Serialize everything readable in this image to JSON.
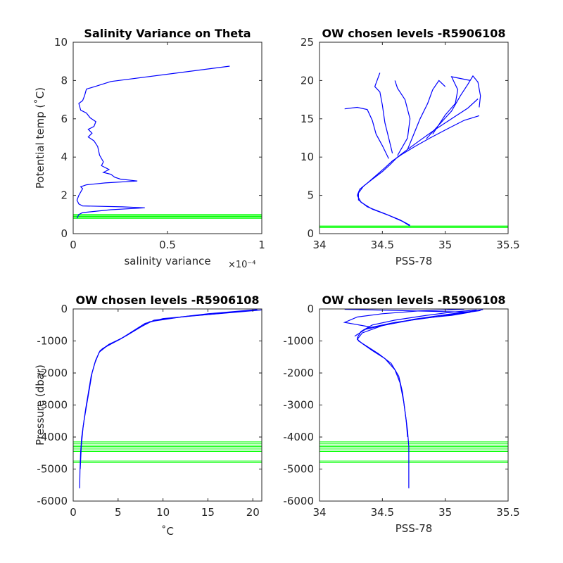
{
  "chart_data": [
    {
      "id": "p1",
      "type": "line",
      "title": "Salinity Variance on Theta",
      "xlabel": "salinity variance",
      "ylabel": "Potential temp (˚C)",
      "x_exponent_label": "×10⁻⁴",
      "xlim": [
        0,
        1
      ],
      "ylim": [
        0,
        10
      ],
      "xticks": [
        0,
        0.5,
        1
      ],
      "xtick_labels": [
        "0",
        "0.5",
        "1"
      ],
      "yticks": [
        0,
        2,
        4,
        6,
        8,
        10
      ],
      "ytick_labels": [
        "0",
        "2",
        "4",
        "6",
        "8",
        "10"
      ],
      "series": [
        {
          "color": "#0000ff",
          "points": [
            [
              0.83,
              8.75
            ],
            [
              0.2,
              7.95
            ],
            [
              0.12,
              7.7
            ],
            [
              0.07,
              7.55
            ],
            [
              0.06,
              7.2
            ],
            [
              0.05,
              6.95
            ],
            [
              0.03,
              6.8
            ],
            [
              0.04,
              6.45
            ],
            [
              0.07,
              6.3
            ],
            [
              0.09,
              6.05
            ],
            [
              0.12,
              5.85
            ],
            [
              0.11,
              5.6
            ],
            [
              0.08,
              5.45
            ],
            [
              0.1,
              5.25
            ],
            [
              0.08,
              5.05
            ],
            [
              0.11,
              4.85
            ],
            [
              0.13,
              4.55
            ],
            [
              0.14,
              4.1
            ],
            [
              0.16,
              3.75
            ],
            [
              0.15,
              3.55
            ],
            [
              0.19,
              3.35
            ],
            [
              0.16,
              3.2
            ],
            [
              0.2,
              3.1
            ],
            [
              0.22,
              2.95
            ],
            [
              0.25,
              2.85
            ],
            [
              0.34,
              2.75
            ],
            [
              0.17,
              2.65
            ],
            [
              0.07,
              2.55
            ],
            [
              0.04,
              2.45
            ],
            [
              0.05,
              2.35
            ],
            [
              0.03,
              2.0
            ],
            [
              0.02,
              1.75
            ],
            [
              0.03,
              1.55
            ],
            [
              0.05,
              1.45
            ],
            [
              0.26,
              1.4
            ],
            [
              0.38,
              1.35
            ],
            [
              0.2,
              1.25
            ],
            [
              0.05,
              1.1
            ],
            [
              0.03,
              1.0
            ],
            [
              0.02,
              0.8
            ]
          ]
        }
      ],
      "hlines": [
        0.8,
        0.85,
        0.9,
        0.95,
        1.0
      ],
      "hline_color": "#00ff00"
    },
    {
      "id": "p2",
      "type": "line",
      "title": "OW chosen levels -R5906108",
      "xlabel": "PSS-78",
      "ylabel": "",
      "xlim": [
        34,
        35.5
      ],
      "ylim": [
        0,
        25
      ],
      "xticks": [
        34,
        34.5,
        35,
        35.5
      ],
      "xtick_labels": [
        "34",
        "34.5",
        "35",
        "35.5"
      ],
      "yticks": [
        0,
        5,
        10,
        15,
        20,
        25
      ],
      "ytick_labels": [
        "0",
        "5",
        "10",
        "15",
        "20",
        "25"
      ],
      "series": [
        {
          "color": "#0000ff",
          "points": [
            [
              34.72,
              1.0
            ],
            [
              34.66,
              1.6
            ],
            [
              34.55,
              2.4
            ],
            [
              34.42,
              3.2
            ],
            [
              34.33,
              4.1
            ],
            [
              34.3,
              5.0
            ],
            [
              34.32,
              5.8
            ],
            [
              34.38,
              6.6
            ],
            [
              34.45,
              7.6
            ],
            [
              34.52,
              8.6
            ],
            [
              34.58,
              9.5
            ],
            [
              34.66,
              10.4
            ],
            [
              34.76,
              11.4
            ],
            [
              34.88,
              12.5
            ],
            [
              35.02,
              13.7
            ],
            [
              35.15,
              14.8
            ],
            [
              35.27,
              15.4
            ]
          ]
        },
        {
          "color": "#0000ff",
          "points": [
            [
              34.72,
              1.1
            ],
            [
              34.64,
              1.8
            ],
            [
              34.52,
              2.6
            ],
            [
              34.38,
              3.5
            ],
            [
              34.31,
              4.4
            ],
            [
              34.31,
              5.3
            ],
            [
              34.35,
              6.2
            ],
            [
              34.42,
              7.1
            ],
            [
              34.5,
              8.1
            ],
            [
              34.56,
              9.0
            ],
            [
              34.62,
              10.0
            ],
            [
              34.7,
              11.0
            ],
            [
              34.8,
              12.2
            ],
            [
              34.92,
              13.6
            ],
            [
              35.05,
              15.0
            ],
            [
              35.18,
              16.4
            ],
            [
              35.26,
              17.6
            ]
          ]
        },
        {
          "color": "#0000ff",
          "points": [
            [
              34.55,
              9.8
            ],
            [
              34.5,
              11.5
            ],
            [
              34.45,
              13.0
            ],
            [
              34.42,
              14.8
            ],
            [
              34.38,
              16.2
            ],
            [
              34.3,
              16.5
            ],
            [
              34.2,
              16.3
            ]
          ]
        },
        {
          "color": "#0000ff",
          "points": [
            [
              34.58,
              10.5
            ],
            [
              34.55,
              12.5
            ],
            [
              34.52,
              14.5
            ],
            [
              34.5,
              16.8
            ],
            [
              34.48,
              18.5
            ],
            [
              34.44,
              19.2
            ],
            [
              34.48,
              21.0
            ]
          ]
        },
        {
          "color": "#0000ff",
          "points": [
            [
              34.7,
              11.0
            ],
            [
              34.75,
              13.0
            ],
            [
              34.8,
              15.0
            ],
            [
              34.86,
              17.0
            ],
            [
              34.9,
              18.8
            ],
            [
              34.95,
              20.0
            ],
            [
              35.0,
              19.2
            ]
          ]
        },
        {
          "color": "#0000ff",
          "points": [
            [
              34.85,
              12.4
            ],
            [
              34.95,
              14.2
            ],
            [
              35.05,
              16.0
            ],
            [
              35.12,
              18.0
            ],
            [
              35.18,
              19.5
            ],
            [
              35.22,
              20.6
            ],
            [
              35.26,
              19.8
            ],
            [
              35.28,
              18.0
            ],
            [
              35.27,
              16.5
            ]
          ]
        },
        {
          "color": "#0000ff",
          "points": [
            [
              34.62,
              10.2
            ],
            [
              34.7,
              12.5
            ],
            [
              34.72,
              15.0
            ],
            [
              34.68,
              17.5
            ],
            [
              34.62,
              19.0
            ],
            [
              34.6,
              20.0
            ]
          ]
        },
        {
          "color": "#0000ff",
          "points": [
            [
              34.9,
              13.0
            ],
            [
              35.0,
              15.5
            ],
            [
              35.08,
              17.0
            ],
            [
              35.1,
              18.8
            ],
            [
              35.05,
              20.5
            ],
            [
              35.2,
              20.0
            ]
          ]
        }
      ],
      "hlines": [
        0.8,
        0.9,
        1.0
      ],
      "hline_color": "#00ff00"
    },
    {
      "id": "p3",
      "type": "line",
      "title": "OW chosen levels -R5906108",
      "xlabel": "˚C",
      "ylabel": "Pressure (dbar)",
      "xlim": [
        0,
        21
      ],
      "ylim": [
        -6000,
        0
      ],
      "xticks": [
        0,
        5,
        10,
        15,
        20
      ],
      "xtick_labels": [
        "0",
        "5",
        "10",
        "15",
        "20"
      ],
      "yticks": [
        -6000,
        -5000,
        -4000,
        -3000,
        -2000,
        -1000,
        0
      ],
      "ytick_labels": [
        "-6000",
        "-5000",
        "-4000",
        "-3000",
        "-2000",
        "-1000",
        "0"
      ],
      "series": [
        {
          "color": "#0000ff",
          "points": [
            [
              0.72,
              -5600
            ],
            [
              0.76,
              -5000
            ],
            [
              0.82,
              -4500
            ],
            [
              0.95,
              -4000
            ],
            [
              1.2,
              -3500
            ],
            [
              1.5,
              -3000
            ],
            [
              1.8,
              -2500
            ],
            [
              2.1,
              -2000
            ],
            [
              2.5,
              -1600
            ],
            [
              3.0,
              -1300
            ],
            [
              4.0,
              -1100
            ],
            [
              5.5,
              -900
            ],
            [
              7.0,
              -650
            ],
            [
              8.5,
              -400
            ],
            [
              12.0,
              -250
            ],
            [
              15.0,
              -150
            ],
            [
              18.0,
              -80
            ],
            [
              20.5,
              -20
            ]
          ]
        },
        {
          "color": "#0000ff",
          "points": [
            [
              0.78,
              -5000
            ],
            [
              0.9,
              -4300
            ],
            [
              1.1,
              -3700
            ],
            [
              1.4,
              -3100
            ],
            [
              1.7,
              -2600
            ],
            [
              2.0,
              -2100
            ],
            [
              2.4,
              -1700
            ],
            [
              2.9,
              -1350
            ],
            [
              3.8,
              -1150
            ],
            [
              5.2,
              -950
            ],
            [
              6.6,
              -700
            ],
            [
              8.0,
              -450
            ],
            [
              10.0,
              -300
            ],
            [
              14.0,
              -200
            ],
            [
              17.0,
              -120
            ],
            [
              20.0,
              -40
            ]
          ]
        },
        {
          "color": "#0000ff",
          "points": [
            [
              3.2,
              -1250
            ],
            [
              4.5,
              -1050
            ],
            [
              6.0,
              -820
            ],
            [
              7.6,
              -550
            ],
            [
              9.0,
              -350
            ],
            [
              13.0,
              -220
            ],
            [
              16.5,
              -140
            ],
            [
              21.0,
              -30
            ]
          ]
        }
      ],
      "hlines": [
        -4150,
        -4200,
        -4250,
        -4300,
        -4350,
        -4400,
        -4450,
        -4750,
        -4800
      ],
      "hline_color": "#00ff00"
    },
    {
      "id": "p4",
      "type": "line",
      "title": "OW chosen levels -R5906108",
      "xlabel": "PSS-78",
      "ylabel": "",
      "xlim": [
        34,
        35.5
      ],
      "ylim": [
        -6000,
        0
      ],
      "xticks": [
        34,
        34.5,
        35,
        35.5
      ],
      "xtick_labels": [
        "34",
        "34.5",
        "35",
        "35.5"
      ],
      "yticks": [
        -6000,
        -5000,
        -4000,
        -3000,
        -2000,
        -1000,
        0
      ],
      "ytick_labels": [
        "-6000",
        "-5000",
        "-4000",
        "-3000",
        "-2000",
        "-1000",
        "0"
      ],
      "series": [
        {
          "color": "#0000ff",
          "points": [
            [
              34.71,
              -5600
            ],
            [
              34.71,
              -5000
            ],
            [
              34.71,
              -4300
            ],
            [
              34.7,
              -3800
            ],
            [
              34.68,
              -3200
            ],
            [
              34.66,
              -2600
            ],
            [
              34.63,
              -2100
            ],
            [
              34.57,
              -1700
            ],
            [
              34.47,
              -1400
            ],
            [
              34.37,
              -1150
            ],
            [
              34.31,
              -1000
            ],
            [
              34.3,
              -900
            ],
            [
              34.33,
              -700
            ],
            [
              34.42,
              -500
            ],
            [
              34.6,
              -350
            ],
            [
              34.85,
              -200
            ],
            [
              35.05,
              -100
            ],
            [
              35.25,
              -30
            ]
          ]
        },
        {
          "color": "#0000ff",
          "points": [
            [
              34.7,
              -4000
            ],
            [
              34.69,
              -3500
            ],
            [
              34.67,
              -2900
            ],
            [
              34.64,
              -2300
            ],
            [
              34.6,
              -1900
            ],
            [
              34.52,
              -1550
            ],
            [
              34.42,
              -1300
            ],
            [
              34.34,
              -1080
            ],
            [
              34.3,
              -950
            ],
            [
              34.34,
              -750
            ],
            [
              34.5,
              -520
            ],
            [
              34.75,
              -320
            ],
            [
              35.0,
              -180
            ],
            [
              35.2,
              -80
            ],
            [
              35.3,
              -20
            ]
          ]
        },
        {
          "color": "#0000ff",
          "points": [
            [
              34.28,
              -850
            ],
            [
              34.38,
              -600
            ],
            [
              34.6,
              -420
            ],
            [
              34.9,
              -260
            ],
            [
              35.1,
              -150
            ],
            [
              35.28,
              -50
            ]
          ]
        },
        {
          "color": "#0000ff",
          "points": [
            [
              34.35,
              -650
            ],
            [
              34.55,
              -480
            ],
            [
              34.8,
              -300
            ],
            [
              35.05,
              -200
            ],
            [
              35.2,
              -100
            ],
            [
              34.2,
              -10
            ]
          ]
        },
        {
          "color": "#0000ff",
          "points": [
            [
              34.4,
              -560
            ],
            [
              34.2,
              -420
            ],
            [
              34.3,
              -250
            ],
            [
              34.5,
              -150
            ],
            [
              34.8,
              -60
            ],
            [
              35.15,
              -10
            ]
          ]
        }
      ],
      "hlines": [
        -4150,
        -4200,
        -4250,
        -4300,
        -4350,
        -4400,
        -4450,
        -4750,
        -4800
      ],
      "hline_color": "#00ff00"
    }
  ]
}
